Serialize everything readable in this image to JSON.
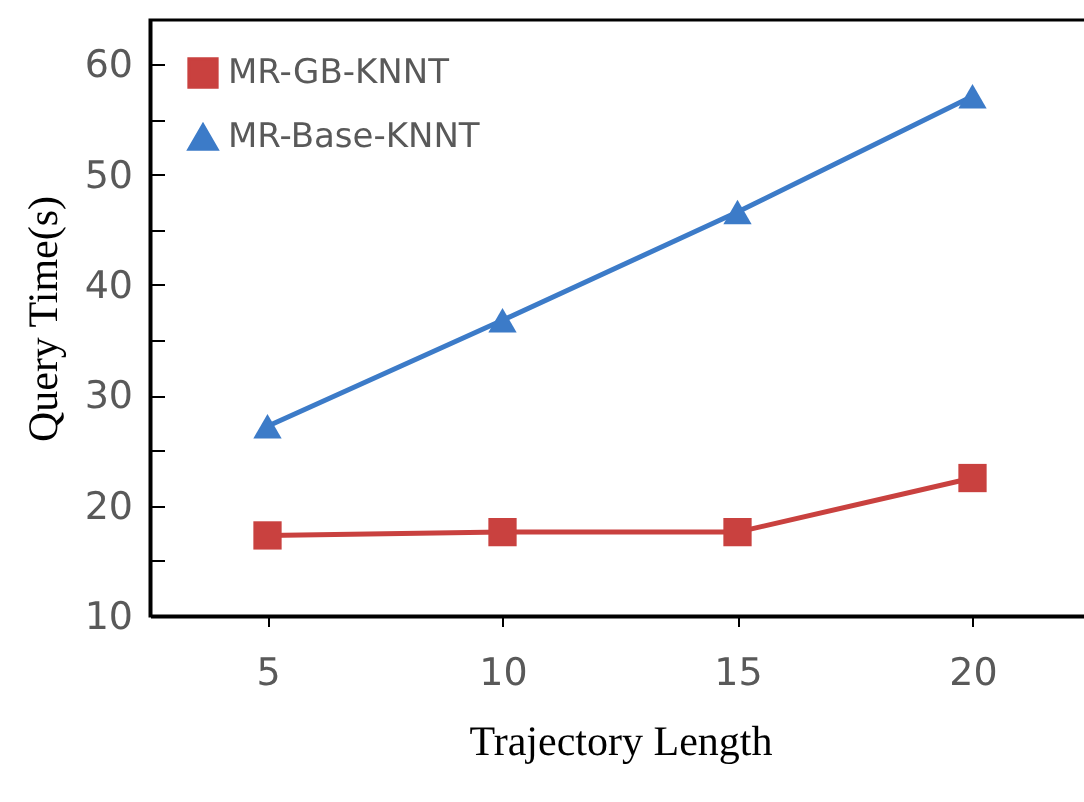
{
  "chart_data": {
    "type": "line",
    "xlabel": "Trajectory Length",
    "ylabel": "Query Time(s)",
    "categories": [
      "5",
      "10",
      "15",
      "20"
    ],
    "series": [
      {
        "name": "MR-GB-KNNT",
        "color": "#c9413f",
        "marker": "square",
        "values": [
          17.3,
          17.6,
          17.6,
          22.5
        ]
      },
      {
        "name": "MR-Base-KNNT",
        "color": "#3c7bc8",
        "marker": "triangle",
        "values": [
          27.2,
          36.8,
          46.6,
          57.1
        ]
      }
    ],
    "ylim": [
      10,
      64
    ],
    "yticks": [
      10,
      {
        "value": 15,
        "label": null
      },
      20,
      {
        "value": 25,
        "label": null
      },
      30,
      {
        "value": 35,
        "label": null
      },
      40,
      {
        "value": 45,
        "label": null
      },
      50,
      {
        "value": 55,
        "label": null
      },
      60
    ],
    "grid": false,
    "legend": "top left"
  }
}
